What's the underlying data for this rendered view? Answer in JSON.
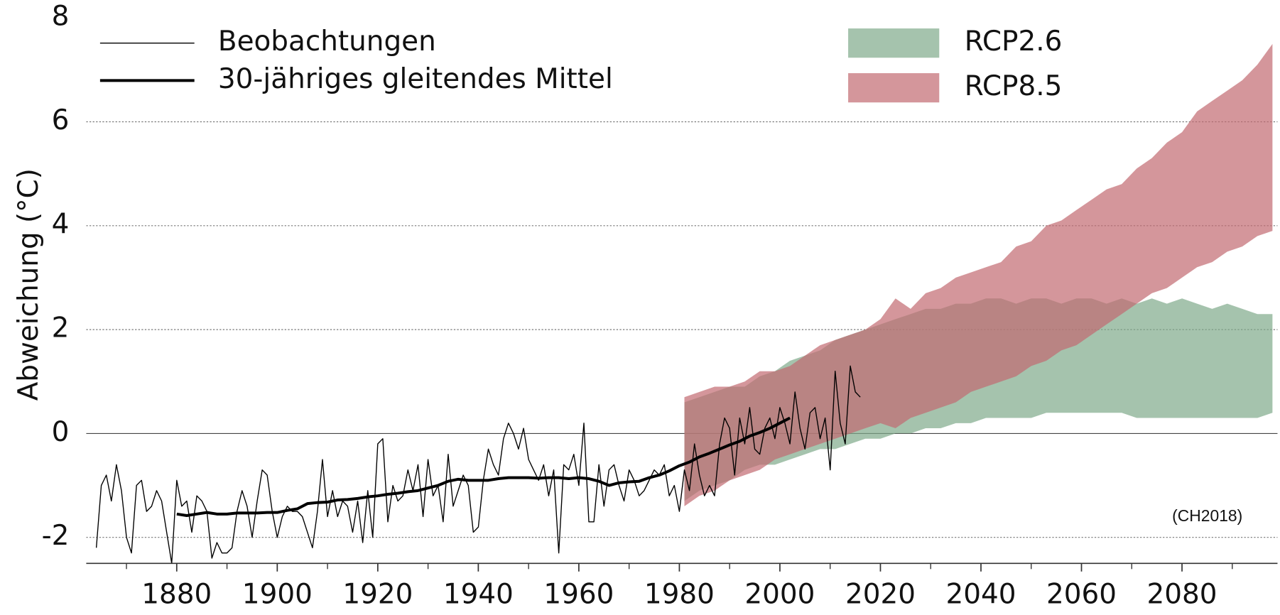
{
  "chart_data": {
    "type": "line",
    "ylabel": "Abweichung (°C)",
    "annotation": "(CH2018)",
    "xlim": [
      1862,
      2099
    ],
    "ylim": [
      -2.5,
      8
    ],
    "xticks": [
      1880,
      1900,
      1920,
      1940,
      1960,
      1980,
      2000,
      2020,
      2040,
      2060,
      2080
    ],
    "xminorticks": [
      1870,
      1890,
      1910,
      1930,
      1950,
      1970,
      1990,
      2010,
      2030,
      2050,
      2070,
      2090
    ],
    "yticks": [
      -2,
      0,
      2,
      4,
      6,
      8
    ],
    "grid": true,
    "series": [
      {
        "name": "RCP2.6",
        "type": "band",
        "color": "#7fa98a",
        "x": [
          1981,
          1984,
          1987,
          1990,
          1993,
          1996,
          1999,
          2002,
          2005,
          2008,
          2011,
          2014,
          2017,
          2020,
          2023,
          2026,
          2029,
          2032,
          2035,
          2038,
          2041,
          2044,
          2047,
          2050,
          2053,
          2056,
          2059,
          2062,
          2065,
          2068,
          2071,
          2074,
          2077,
          2080,
          2083,
          2086,
          2089,
          2092,
          2095,
          2098
        ],
        "lower": [
          -1.3,
          -1.1,
          -1.0,
          -0.9,
          -0.7,
          -0.6,
          -0.6,
          -0.5,
          -0.4,
          -0.3,
          -0.3,
          -0.2,
          -0.1,
          -0.1,
          0.0,
          0.0,
          0.1,
          0.1,
          0.2,
          0.2,
          0.3,
          0.3,
          0.3,
          0.3,
          0.4,
          0.4,
          0.4,
          0.4,
          0.4,
          0.4,
          0.3,
          0.3,
          0.3,
          0.3,
          0.3,
          0.3,
          0.3,
          0.3,
          0.3,
          0.4
        ],
        "upper": [
          0.6,
          0.7,
          0.8,
          0.9,
          0.9,
          1.1,
          1.2,
          1.4,
          1.5,
          1.6,
          1.8,
          1.9,
          2.0,
          2.1,
          2.2,
          2.3,
          2.4,
          2.4,
          2.5,
          2.5,
          2.6,
          2.6,
          2.5,
          2.6,
          2.6,
          2.5,
          2.6,
          2.6,
          2.5,
          2.6,
          2.5,
          2.6,
          2.5,
          2.6,
          2.5,
          2.4,
          2.5,
          2.4,
          2.3,
          2.3
        ]
      },
      {
        "name": "RCP8.5",
        "type": "band",
        "color": "#c26a70",
        "x": [
          1981,
          1984,
          1987,
          1990,
          1993,
          1996,
          1999,
          2002,
          2005,
          2008,
          2011,
          2014,
          2017,
          2020,
          2023,
          2026,
          2029,
          2032,
          2035,
          2038,
          2041,
          2044,
          2047,
          2050,
          2053,
          2056,
          2059,
          2062,
          2065,
          2068,
          2071,
          2074,
          2077,
          2080,
          2083,
          2086,
          2089,
          2092,
          2095,
          2098
        ],
        "lower": [
          -1.4,
          -1.2,
          -1.1,
          -0.9,
          -0.8,
          -0.7,
          -0.5,
          -0.4,
          -0.3,
          -0.2,
          -0.1,
          0.0,
          0.1,
          0.2,
          0.1,
          0.3,
          0.4,
          0.5,
          0.6,
          0.8,
          0.9,
          1.0,
          1.1,
          1.3,
          1.4,
          1.6,
          1.7,
          1.9,
          2.1,
          2.3,
          2.5,
          2.7,
          2.8,
          3.0,
          3.2,
          3.3,
          3.5,
          3.6,
          3.8,
          3.9
        ],
        "upper": [
          0.7,
          0.8,
          0.9,
          0.9,
          1.0,
          1.2,
          1.2,
          1.3,
          1.5,
          1.7,
          1.8,
          1.9,
          2.0,
          2.2,
          2.6,
          2.4,
          2.7,
          2.8,
          3.0,
          3.1,
          3.2,
          3.3,
          3.6,
          3.7,
          4.0,
          4.1,
          4.3,
          4.5,
          4.7,
          4.8,
          5.1,
          5.3,
          5.6,
          5.8,
          6.2,
          6.4,
          6.6,
          6.8,
          7.1,
          7.5
        ]
      },
      {
        "name": "Beobachtungen",
        "type": "line",
        "color": "#000000",
        "line_width": 1.2,
        "x": [
          1864,
          1865,
          1866,
          1867,
          1868,
          1869,
          1870,
          1871,
          1872,
          1873,
          1874,
          1875,
          1876,
          1877,
          1878,
          1879,
          1880,
          1881,
          1882,
          1883,
          1884,
          1885,
          1886,
          1887,
          1888,
          1889,
          1890,
          1891,
          1892,
          1893,
          1894,
          1895,
          1896,
          1897,
          1898,
          1899,
          1900,
          1901,
          1902,
          1903,
          1904,
          1905,
          1906,
          1907,
          1908,
          1909,
          1910,
          1911,
          1912,
          1913,
          1914,
          1915,
          1916,
          1917,
          1918,
          1919,
          1920,
          1921,
          1922,
          1923,
          1924,
          1925,
          1926,
          1927,
          1928,
          1929,
          1930,
          1931,
          1932,
          1933,
          1934,
          1935,
          1936,
          1937,
          1938,
          1939,
          1940,
          1941,
          1942,
          1943,
          1944,
          1945,
          1946,
          1947,
          1948,
          1949,
          1950,
          1951,
          1952,
          1953,
          1954,
          1955,
          1956,
          1957,
          1958,
          1959,
          1960,
          1961,
          1962,
          1963,
          1964,
          1965,
          1966,
          1967,
          1968,
          1969,
          1970,
          1971,
          1972,
          1973,
          1974,
          1975,
          1976,
          1977,
          1978,
          1979,
          1980,
          1981,
          1982,
          1983,
          1984,
          1985,
          1986,
          1987,
          1988,
          1989,
          1990,
          1991,
          1992,
          1993,
          1994,
          1995,
          1996,
          1997,
          1998,
          1999,
          2000,
          2001,
          2002,
          2003,
          2004,
          2005,
          2006,
          2007,
          2008,
          2009,
          2010,
          2011,
          2012,
          2013,
          2014,
          2015,
          2016
        ],
        "values": [
          -2.2,
          -1.0,
          -0.8,
          -1.3,
          -0.6,
          -1.1,
          -2.0,
          -2.3,
          -1.0,
          -0.9,
          -1.5,
          -1.4,
          -1.1,
          -1.3,
          -1.9,
          -2.5,
          -0.9,
          -1.4,
          -1.3,
          -1.9,
          -1.2,
          -1.3,
          -1.5,
          -2.4,
          -2.1,
          -2.3,
          -2.3,
          -2.2,
          -1.5,
          -1.1,
          -1.4,
          -2.0,
          -1.3,
          -0.7,
          -0.8,
          -1.5,
          -2.0,
          -1.6,
          -1.4,
          -1.5,
          -1.5,
          -1.6,
          -1.9,
          -2.2,
          -1.5,
          -0.5,
          -1.6,
          -1.1,
          -1.6,
          -1.3,
          -1.4,
          -1.9,
          -1.3,
          -2.1,
          -1.1,
          -2.0,
          -0.2,
          -0.1,
          -1.7,
          -1.0,
          -1.3,
          -1.2,
          -0.7,
          -1.1,
          -0.6,
          -1.6,
          -0.5,
          -1.2,
          -1.0,
          -1.7,
          -0.4,
          -1.4,
          -1.1,
          -0.8,
          -1.0,
          -1.9,
          -1.8,
          -0.9,
          -0.3,
          -0.6,
          -0.8,
          -0.1,
          0.2,
          0.0,
          -0.3,
          0.1,
          -0.5,
          -0.7,
          -0.9,
          -0.6,
          -1.2,
          -0.7,
          -2.3,
          -0.6,
          -0.7,
          -0.4,
          -1.0,
          0.2,
          -1.7,
          -1.7,
          -0.6,
          -1.4,
          -0.7,
          -0.6,
          -1.0,
          -1.3,
          -0.7,
          -0.9,
          -1.2,
          -1.1,
          -0.9,
          -0.7,
          -0.8,
          -0.6,
          -1.2,
          -1.0,
          -1.5,
          -0.7,
          -1.1,
          -0.2,
          -0.8,
          -1.2,
          -1.0,
          -1.2,
          -0.2,
          0.3,
          0.1,
          -0.8,
          0.3,
          -0.2,
          0.5,
          -0.3,
          -0.4,
          0.1,
          0.3,
          -0.1,
          0.5,
          0.2,
          -0.2,
          0.8,
          0.1,
          -0.3,
          0.4,
          0.5,
          -0.1,
          0.3,
          -0.7,
          1.2,
          0.2,
          -0.2,
          1.3,
          0.8,
          0.7
        ]
      },
      {
        "name": "30-jähriges gleitendes Mittel",
        "type": "line",
        "color": "#000000",
        "line_width": 3.5,
        "x": [
          1880,
          1882,
          1884,
          1886,
          1888,
          1890,
          1892,
          1894,
          1896,
          1898,
          1900,
          1902,
          1904,
          1906,
          1908,
          1910,
          1912,
          1914,
          1916,
          1918,
          1920,
          1922,
          1924,
          1926,
          1928,
          1930,
          1932,
          1934,
          1936,
          1938,
          1940,
          1942,
          1944,
          1946,
          1948,
          1950,
          1952,
          1954,
          1956,
          1958,
          1960,
          1962,
          1964,
          1966,
          1968,
          1970,
          1972,
          1974,
          1976,
          1978,
          1980,
          1982,
          1984,
          1986,
          1988,
          1990,
          1992,
          1994,
          1996,
          1998,
          2000,
          2002
        ],
        "values": [
          -1.55,
          -1.58,
          -1.55,
          -1.52,
          -1.55,
          -1.55,
          -1.53,
          -1.53,
          -1.53,
          -1.52,
          -1.52,
          -1.48,
          -1.45,
          -1.35,
          -1.33,
          -1.32,
          -1.28,
          -1.27,
          -1.25,
          -1.22,
          -1.2,
          -1.17,
          -1.15,
          -1.12,
          -1.1,
          -1.05,
          -1.0,
          -0.92,
          -0.88,
          -0.9,
          -0.9,
          -0.9,
          -0.87,
          -0.85,
          -0.85,
          -0.85,
          -0.86,
          -0.85,
          -0.85,
          -0.87,
          -0.85,
          -0.87,
          -0.92,
          -1.0,
          -0.95,
          -0.93,
          -0.92,
          -0.85,
          -0.8,
          -0.72,
          -0.62,
          -0.55,
          -0.45,
          -0.38,
          -0.3,
          -0.22,
          -0.15,
          -0.05,
          0.02,
          0.1,
          0.2,
          0.3
        ]
      }
    ]
  }
}
